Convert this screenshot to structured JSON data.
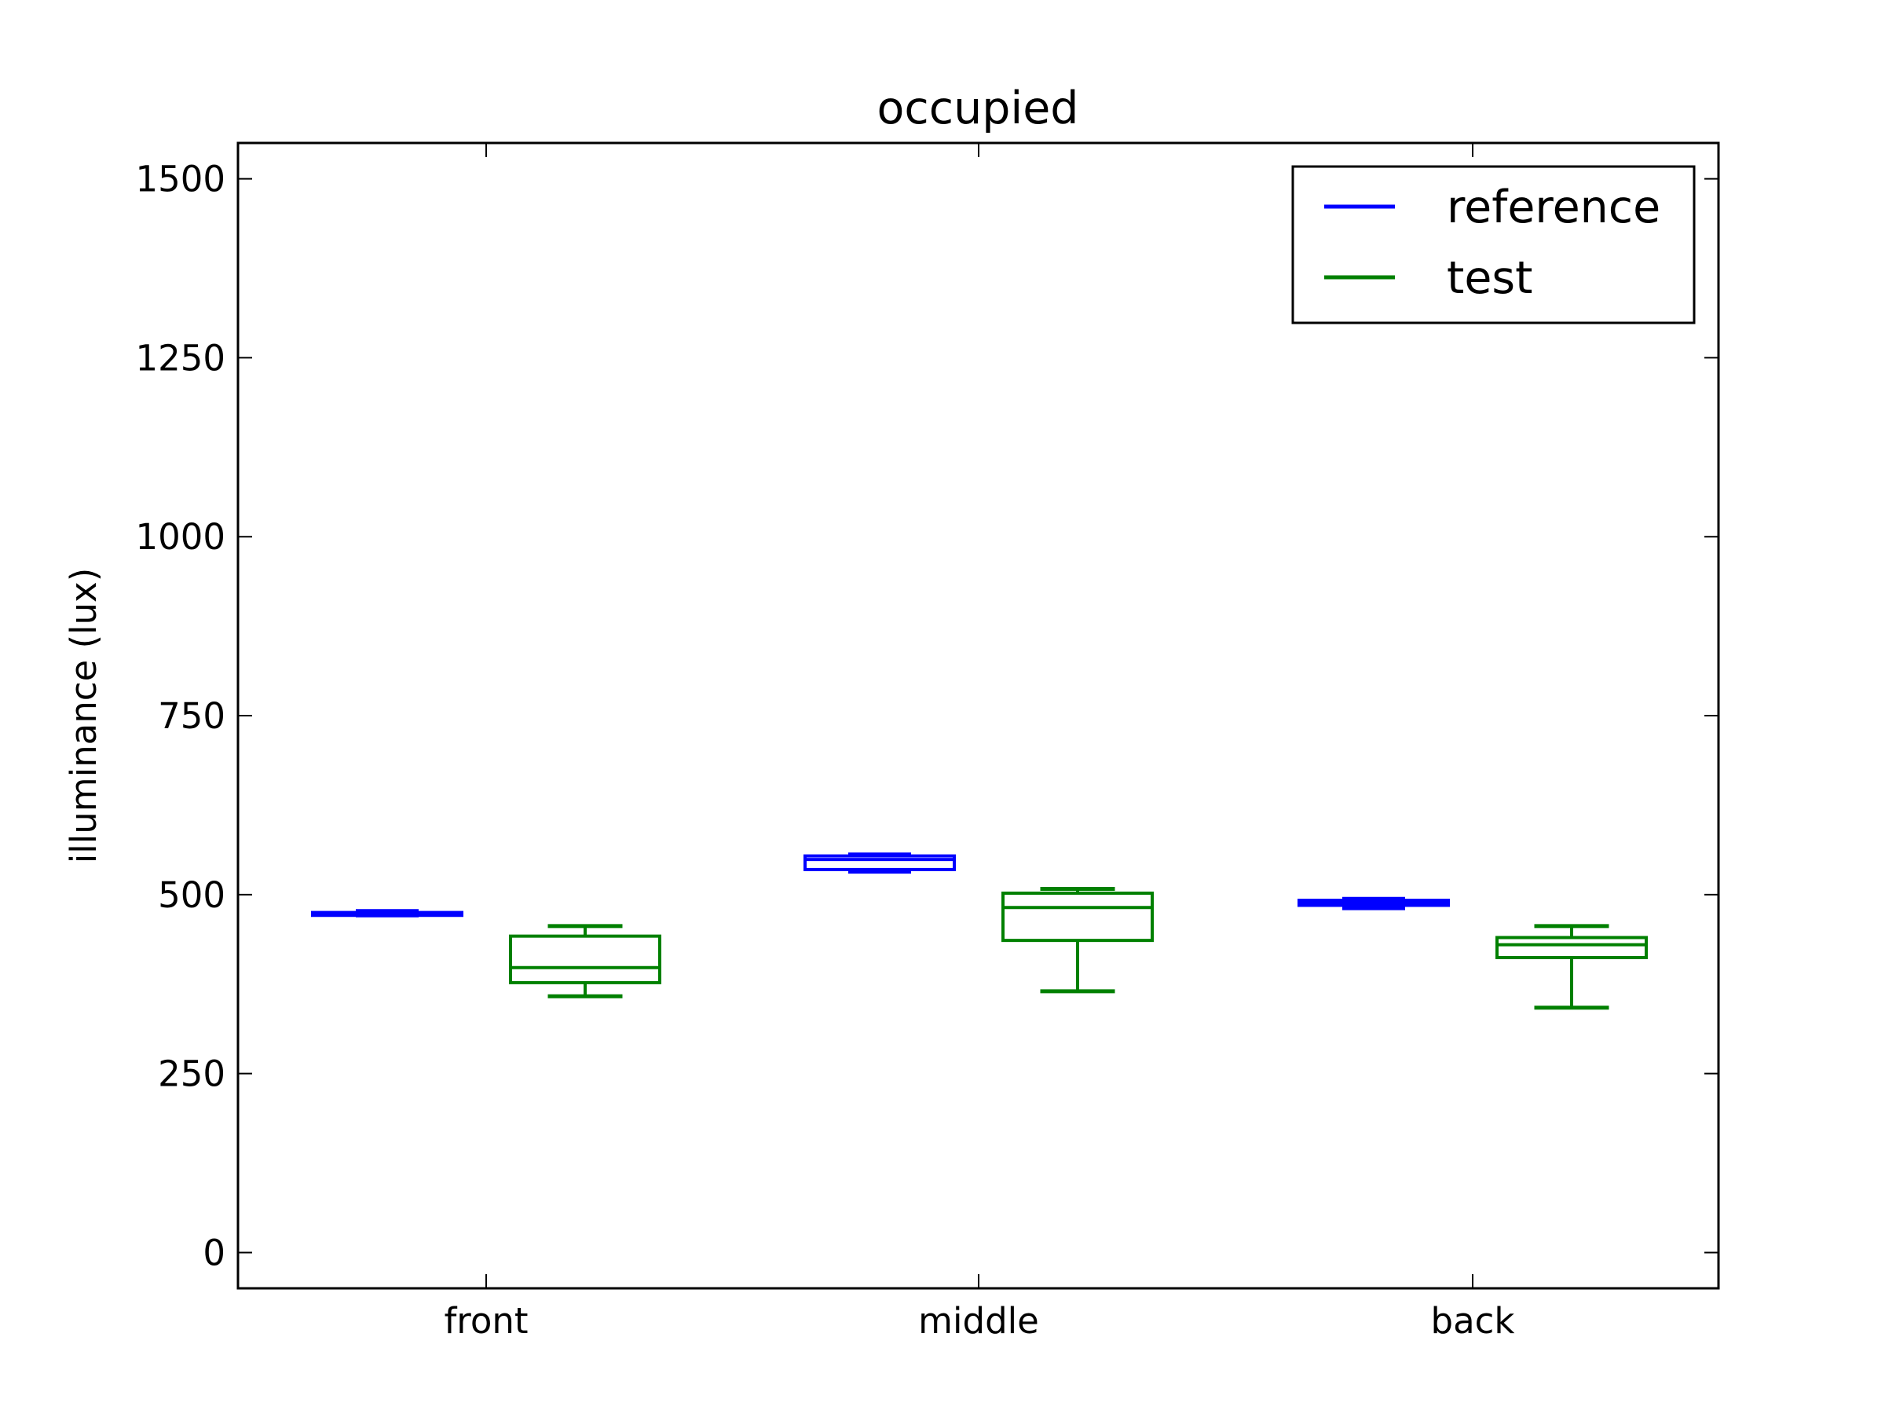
{
  "chart_data": {
    "type": "box",
    "title": "occupied",
    "xlabel": "",
    "ylabel": "illuminance (lux)",
    "ylim": [
      -50,
      1550
    ],
    "yticks": [
      0,
      250,
      500,
      750,
      1000,
      1250,
      1500
    ],
    "categories": [
      "front",
      "middle",
      "back"
    ],
    "legend_position": "upper right",
    "grid": false,
    "series": [
      {
        "name": "reference",
        "color": "#0000ff",
        "boxes": [
          {
            "whislo": 471,
            "q1": 471,
            "median": 473,
            "q3": 475,
            "whishi": 477
          },
          {
            "whislo": 532,
            "q1": 535,
            "median": 549,
            "q3": 554,
            "whishi": 556
          },
          {
            "whislo": 481,
            "q1": 485,
            "median": 488,
            "q3": 492,
            "whishi": 494
          }
        ]
      },
      {
        "name": "test",
        "color": "#008000",
        "boxes": [
          {
            "whislo": 358,
            "q1": 377,
            "median": 398,
            "q3": 442,
            "whishi": 456
          },
          {
            "whislo": 365,
            "q1": 436,
            "median": 482,
            "q3": 502,
            "whishi": 508
          },
          {
            "whislo": 342,
            "q1": 412,
            "median": 430,
            "q3": 440,
            "whishi": 456
          }
        ]
      }
    ]
  }
}
